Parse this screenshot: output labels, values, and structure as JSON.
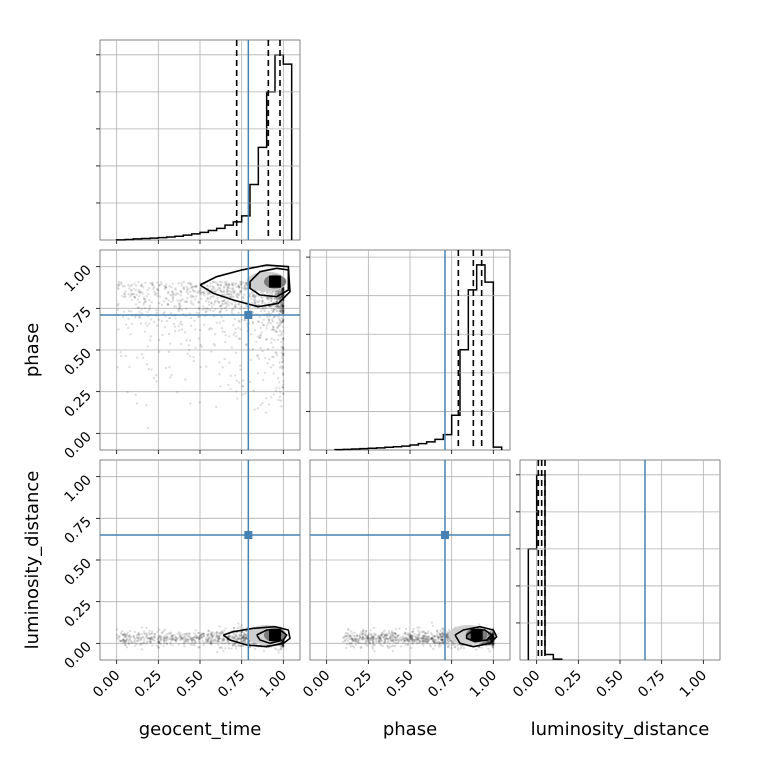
{
  "chart_data": {
    "type": "corner",
    "parameters": [
      "geocent_time",
      "phase",
      "luminosity_distance"
    ],
    "axis_labels": {
      "geocent_time": "geocent_time",
      "phase": "phase",
      "luminosity_distance": "luminosity_distance"
    },
    "range": [
      -0.1,
      1.1
    ],
    "ticks": [
      0.0,
      0.25,
      0.5,
      0.75,
      1.0
    ],
    "tick_labels": [
      "0.00",
      "0.25",
      "0.50",
      "0.75",
      "1.00"
    ],
    "truths": {
      "geocent_time": 0.79,
      "phase": 0.71,
      "luminosity_distance": 0.65
    },
    "truth_color": "#4682b4",
    "quantiles": {
      "geocent_time": [
        0.72,
        0.91,
        0.98
      ],
      "phase": [
        0.79,
        0.88,
        0.93
      ],
      "luminosity_distance": [
        0.01,
        0.03,
        0.05
      ]
    },
    "histograms": {
      "geocent_time": {
        "edges": [
          0.0,
          0.05,
          0.1,
          0.15,
          0.2,
          0.25,
          0.3,
          0.35,
          0.4,
          0.45,
          0.5,
          0.55,
          0.6,
          0.65,
          0.7,
          0.75,
          0.8,
          0.85,
          0.9,
          0.95,
          1.0,
          1.05
        ],
        "counts": [
          0.1,
          0.3,
          0.6,
          0.8,
          1.0,
          1.3,
          1.6,
          2.0,
          2.6,
          3.3,
          4.1,
          5.1,
          6.3,
          8.0,
          9.8,
          13.0,
          30.0,
          50.0,
          80.0,
          100.0,
          95.0
        ]
      },
      "phase": {
        "edges": [
          0.05,
          0.1,
          0.15,
          0.2,
          0.25,
          0.3,
          0.35,
          0.4,
          0.45,
          0.5,
          0.55,
          0.6,
          0.65,
          0.7,
          0.75,
          0.8,
          0.85,
          0.9,
          0.95,
          1.0,
          1.05
        ],
        "counts": [
          0.2,
          0.3,
          0.5,
          0.7,
          0.9,
          1.1,
          1.4,
          1.7,
          2.0,
          2.6,
          3.3,
          4.2,
          5.5,
          8.0,
          18.0,
          52.0,
          83.0,
          96.0,
          87.0,
          1.5
        ]
      },
      "luminosity_distance": {
        "edges": [
          -0.05,
          0.0,
          0.05,
          0.1,
          0.15
        ],
        "counts": [
          60.0,
          100.0,
          3.0,
          0.5
        ]
      }
    },
    "contours": {
      "phase_vs_geocent_time": [
        [
          [
            0.5,
            0.89
          ],
          [
            0.6,
            0.94
          ],
          [
            0.75,
            0.98
          ],
          [
            0.9,
            1.01
          ],
          [
            1.03,
            1.0
          ],
          [
            1.04,
            0.85
          ],
          [
            0.97,
            0.78
          ],
          [
            0.85,
            0.76
          ],
          [
            0.7,
            0.8
          ],
          [
            0.58,
            0.84
          ],
          [
            0.5,
            0.89
          ]
        ],
        [
          [
            0.8,
            0.91
          ],
          [
            0.86,
            0.97
          ],
          [
            0.96,
            0.99
          ],
          [
            1.03,
            0.98
          ],
          [
            1.03,
            0.86
          ],
          [
            0.96,
            0.82
          ],
          [
            0.86,
            0.83
          ],
          [
            0.8,
            0.87
          ],
          [
            0.8,
            0.91
          ]
        ]
      ],
      "luminosity_distance_vs_geocent_time": [
        [
          [
            0.64,
            0.05
          ],
          [
            0.7,
            0.07
          ],
          [
            0.82,
            0.09
          ],
          [
            0.95,
            0.1
          ],
          [
            1.03,
            0.08
          ],
          [
            1.04,
            0.03
          ],
          [
            1.0,
            0.0
          ],
          [
            0.9,
            -0.02
          ],
          [
            0.78,
            -0.01
          ],
          [
            0.68,
            0.02
          ],
          [
            0.64,
            0.05
          ]
        ],
        [
          [
            0.84,
            0.05
          ],
          [
            0.9,
            0.08
          ],
          [
            0.98,
            0.08
          ],
          [
            1.02,
            0.05
          ],
          [
            1.0,
            0.02
          ],
          [
            0.92,
            0.0
          ],
          [
            0.86,
            0.02
          ],
          [
            0.84,
            0.05
          ]
        ]
      ],
      "luminosity_distance_vs_phase": [
        [
          [
            0.77,
            0.05
          ],
          [
            0.82,
            0.08
          ],
          [
            0.92,
            0.1
          ],
          [
            1.0,
            0.08
          ],
          [
            1.02,
            0.04
          ],
          [
            0.98,
            0.0
          ],
          [
            0.88,
            -0.02
          ],
          [
            0.8,
            0.0
          ],
          [
            0.77,
            0.05
          ]
        ],
        [
          [
            0.84,
            0.05
          ],
          [
            0.88,
            0.08
          ],
          [
            0.95,
            0.08
          ],
          [
            0.99,
            0.05
          ],
          [
            0.96,
            0.02
          ],
          [
            0.89,
            0.01
          ],
          [
            0.84,
            0.03
          ],
          [
            0.84,
            0.05
          ]
        ]
      ]
    },
    "density_peak": {
      "phase_vs_geocent_time": [
        0.95,
        0.91
      ],
      "luminosity_distance_vs_geocent_time": [
        0.95,
        0.05
      ],
      "luminosity_distance_vs_phase": [
        0.9,
        0.05
      ]
    },
    "grid": true
  }
}
